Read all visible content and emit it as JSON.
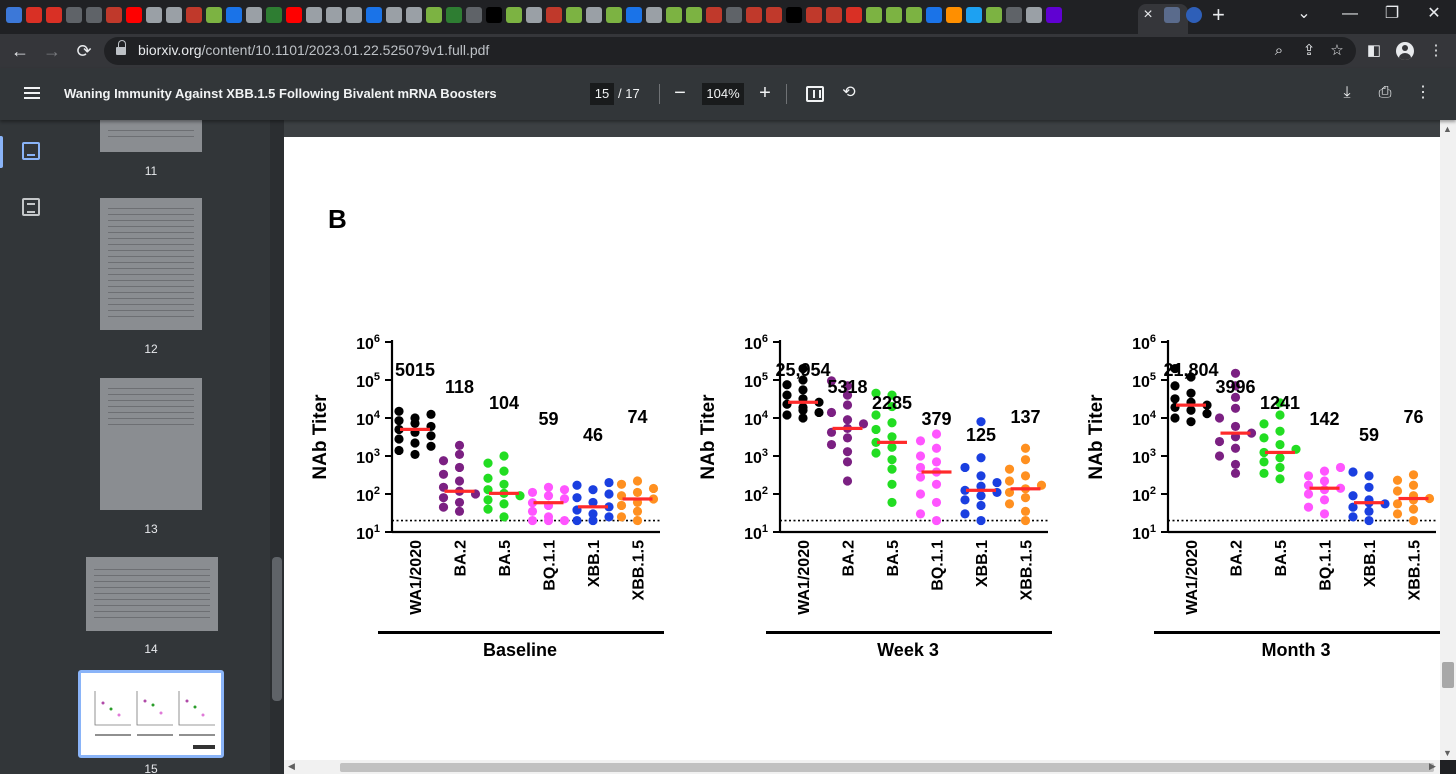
{
  "browser": {
    "tab_close": "×",
    "new_tab": "+",
    "url_host": "biorxiv.org",
    "url_path": "/content/10.1101/2023.01.22.525079v1.full.pdf"
  },
  "pdf": {
    "title": "Waning Immunity Against XBB.1.5 Following Bivalent mRNA Boosters",
    "current_page": "15",
    "total_pages": "/ 17",
    "zoom": "104%"
  },
  "sidebar": {
    "thumbnails": [
      {
        "label": "11"
      },
      {
        "label": "12"
      },
      {
        "label": "13"
      },
      {
        "label": "14"
      },
      {
        "label": "15"
      }
    ]
  },
  "figure": {
    "panel_label": "B",
    "ylabel": "NAb Titer",
    "threshold": 20,
    "colors": {
      "WA1/2020": "#000000",
      "BA.2": "#7b2082",
      "BA.5": "#22dd22",
      "BQ.1.1": "#ff55ff",
      "XBB.1": "#1a3fe0",
      "XBB.1.5": "#ff9020",
      "median": "#ff2a2a"
    }
  },
  "chart_data": [
    {
      "type": "scatter",
      "title": "Baseline",
      "ylabel": "NAb Titer",
      "yscale": "log",
      "ylim": [
        10,
        1000000
      ],
      "y_ticks": [
        "10^1",
        "10^2",
        "10^3",
        "10^4",
        "10^5",
        "10^6"
      ],
      "categories": [
        "WA1/2020",
        "BA.2",
        "BA.5",
        "BQ.1.1",
        "XBB.1",
        "XBB.1.5"
      ],
      "medians": [
        5015,
        118,
        104,
        59,
        46,
        74
      ],
      "median_labels": [
        "5015",
        "118",
        "104",
        "59",
        "46",
        "74"
      ],
      "points": [
        [
          1100,
          1400,
          1800,
          2200,
          2800,
          3400,
          4200,
          5000,
          6000,
          7200,
          8500,
          10000,
          12500,
          15000
        ],
        [
          35,
          45,
          60,
          80,
          100,
          118,
          150,
          220,
          330,
          500,
          750,
          1100,
          1900
        ],
        [
          25,
          40,
          55,
          70,
          90,
          104,
          130,
          180,
          260,
          400,
          650,
          1000
        ],
        [
          20,
          20,
          20,
          25,
          35,
          50,
          59,
          75,
          90,
          110,
          130,
          150
        ],
        [
          20,
          20,
          25,
          30,
          38,
          46,
          60,
          80,
          100,
          130,
          170,
          200
        ],
        [
          20,
          25,
          35,
          50,
          60,
          74,
          90,
          110,
          140,
          180,
          220
        ]
      ]
    },
    {
      "type": "scatter",
      "title": "Week 3",
      "ylabel": "NAb Titer",
      "yscale": "log",
      "ylim": [
        10,
        1000000
      ],
      "y_ticks": [
        "10^1",
        "10^2",
        "10^3",
        "10^4",
        "10^5",
        "10^6"
      ],
      "categories": [
        "WA1/2020",
        "BA.2",
        "BA.5",
        "BQ.1.1",
        "XBB.1",
        "XBB.1.5"
      ],
      "medians": [
        25954,
        5318,
        2285,
        379,
        125,
        137
      ],
      "median_labels": [
        "25,954",
        "5318",
        "2285",
        "379",
        "125",
        "137"
      ],
      "points": [
        [
          10000,
          12000,
          14000,
          16000,
          19000,
          23000,
          25954,
          32000,
          40000,
          55000,
          75000,
          100000,
          200000
        ],
        [
          220,
          700,
          1300,
          2000,
          3000,
          4200,
          5318,
          7000,
          9000,
          14000,
          22000,
          40000,
          70000,
          95000
        ],
        [
          60,
          180,
          450,
          800,
          1200,
          1700,
          2285,
          3200,
          5000,
          7500,
          12000,
          20000,
          40000,
          45000
        ],
        [
          20,
          30,
          60,
          100,
          180,
          280,
          379,
          500,
          700,
          1000,
          1600,
          2500,
          3800
        ],
        [
          20,
          30,
          50,
          70,
          90,
          110,
          125,
          160,
          200,
          300,
          500,
          900,
          8000
        ],
        [
          20,
          35,
          55,
          80,
          110,
          137,
          170,
          220,
          300,
          450,
          800,
          1600
        ]
      ]
    },
    {
      "type": "scatter",
      "title": "Month 3",
      "ylabel": "NAb Titer",
      "yscale": "log",
      "ylim": [
        10,
        1000000
      ],
      "y_ticks": [
        "10^1",
        "10^2",
        "10^3",
        "10^4",
        "10^5",
        "10^6"
      ],
      "categories": [
        "WA1/2020",
        "BA.2",
        "BA.5",
        "BQ.1.1",
        "XBB.1",
        "XBB.1.5"
      ],
      "medians": [
        21804,
        3996,
        1241,
        142,
        59,
        76
      ],
      "median_labels": [
        "21,804",
        "3996",
        "1241",
        "142",
        "59",
        "76"
      ],
      "points": [
        [
          8000,
          10000,
          13000,
          16000,
          19000,
          21804,
          26000,
          32000,
          45000,
          70000,
          120000,
          200000
        ],
        [
          350,
          600,
          1000,
          1600,
          2400,
          3200,
          3996,
          6000,
          10000,
          18000,
          35000,
          70000,
          150000
        ],
        [
          250,
          350,
          500,
          700,
          900,
          1241,
          1500,
          2000,
          3000,
          4500,
          7000,
          12000,
          25000
        ],
        [
          30,
          45,
          70,
          100,
          130,
          142,
          170,
          220,
          300,
          400,
          500
        ],
        [
          20,
          25,
          35,
          45,
          55,
          59,
          70,
          90,
          150,
          300,
          380
        ],
        [
          20,
          30,
          40,
          55,
          70,
          76,
          90,
          120,
          170,
          230,
          320
        ]
      ]
    }
  ]
}
